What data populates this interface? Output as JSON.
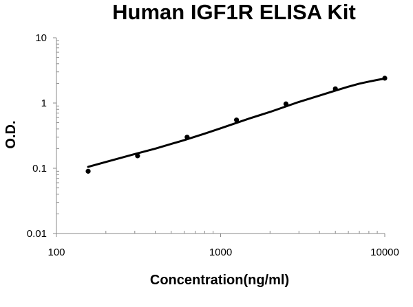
{
  "chart_data": {
    "type": "scatter",
    "title": "Human IGF1R ELISA Kit",
    "xlabel": "Concentration(ng/ml)",
    "ylabel": "O.D.",
    "x_scale": "log",
    "y_scale": "log",
    "xlim": [
      100,
      10000
    ],
    "ylim": [
      0.01,
      10
    ],
    "x_ticks": [
      {
        "value": 100,
        "label": "100"
      },
      {
        "value": 1000,
        "label": "1000"
      },
      {
        "value": 10000,
        "label": "10000"
      }
    ],
    "y_ticks": [
      {
        "value": 0.01,
        "label": "0.01"
      },
      {
        "value": 0.1,
        "label": "0.1"
      },
      {
        "value": 1,
        "label": "1"
      },
      {
        "value": 10,
        "label": "10"
      }
    ],
    "grid": false,
    "legend": "none",
    "series": [
      {
        "kind": "points",
        "x": [
          156,
          312,
          625,
          1250,
          2500,
          5000,
          10000
        ],
        "y": [
          0.09,
          0.155,
          0.3,
          0.55,
          0.97,
          1.65,
          2.4
        ]
      },
      {
        "kind": "fit-curve",
        "x": [
          156,
          200,
          300,
          400,
          600,
          800,
          1000,
          1500,
          2000,
          3000,
          4000,
          5000,
          6000,
          7000,
          8000,
          9000,
          10000
        ],
        "y": [
          0.105,
          0.125,
          0.165,
          0.2,
          0.27,
          0.34,
          0.41,
          0.58,
          0.73,
          1.04,
          1.3,
          1.55,
          1.78,
          1.98,
          2.13,
          2.26,
          2.37
        ]
      }
    ],
    "colors": {
      "points": "#000000",
      "curve": "#000000",
      "axis": "#8a8a8a",
      "background": "#ffffff"
    }
  }
}
